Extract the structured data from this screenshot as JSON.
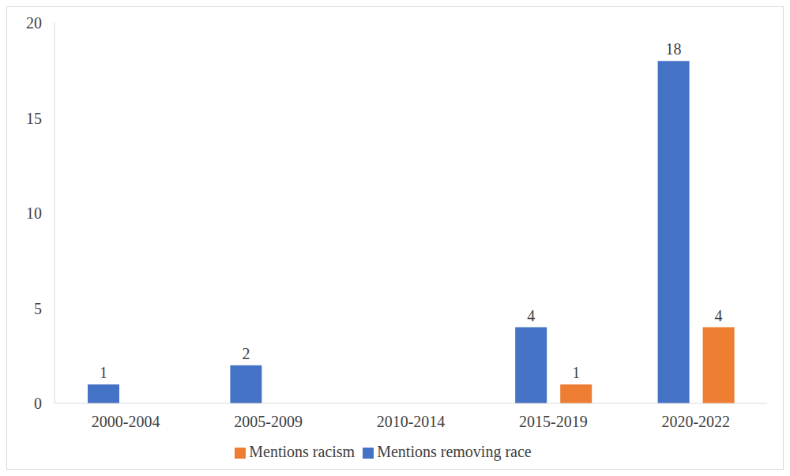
{
  "chart_data": {
    "type": "bar",
    "categories": [
      "2000-2004",
      "2005-2009",
      "2010-2014",
      "2015-2019",
      "2020-2022"
    ],
    "series": [
      {
        "name": "Mentions removing race",
        "color": "#4472c4",
        "values": [
          1,
          2,
          0,
          4,
          18
        ]
      },
      {
        "name": "Mentions racism",
        "color": "#ed7d31",
        "values": [
          0,
          0,
          0,
          1,
          4
        ]
      }
    ],
    "ylim": [
      0,
      20
    ],
    "yticks": [
      0,
      5,
      10,
      15,
      20
    ],
    "grid": false,
    "legend": "bottom",
    "data_labels": true
  }
}
